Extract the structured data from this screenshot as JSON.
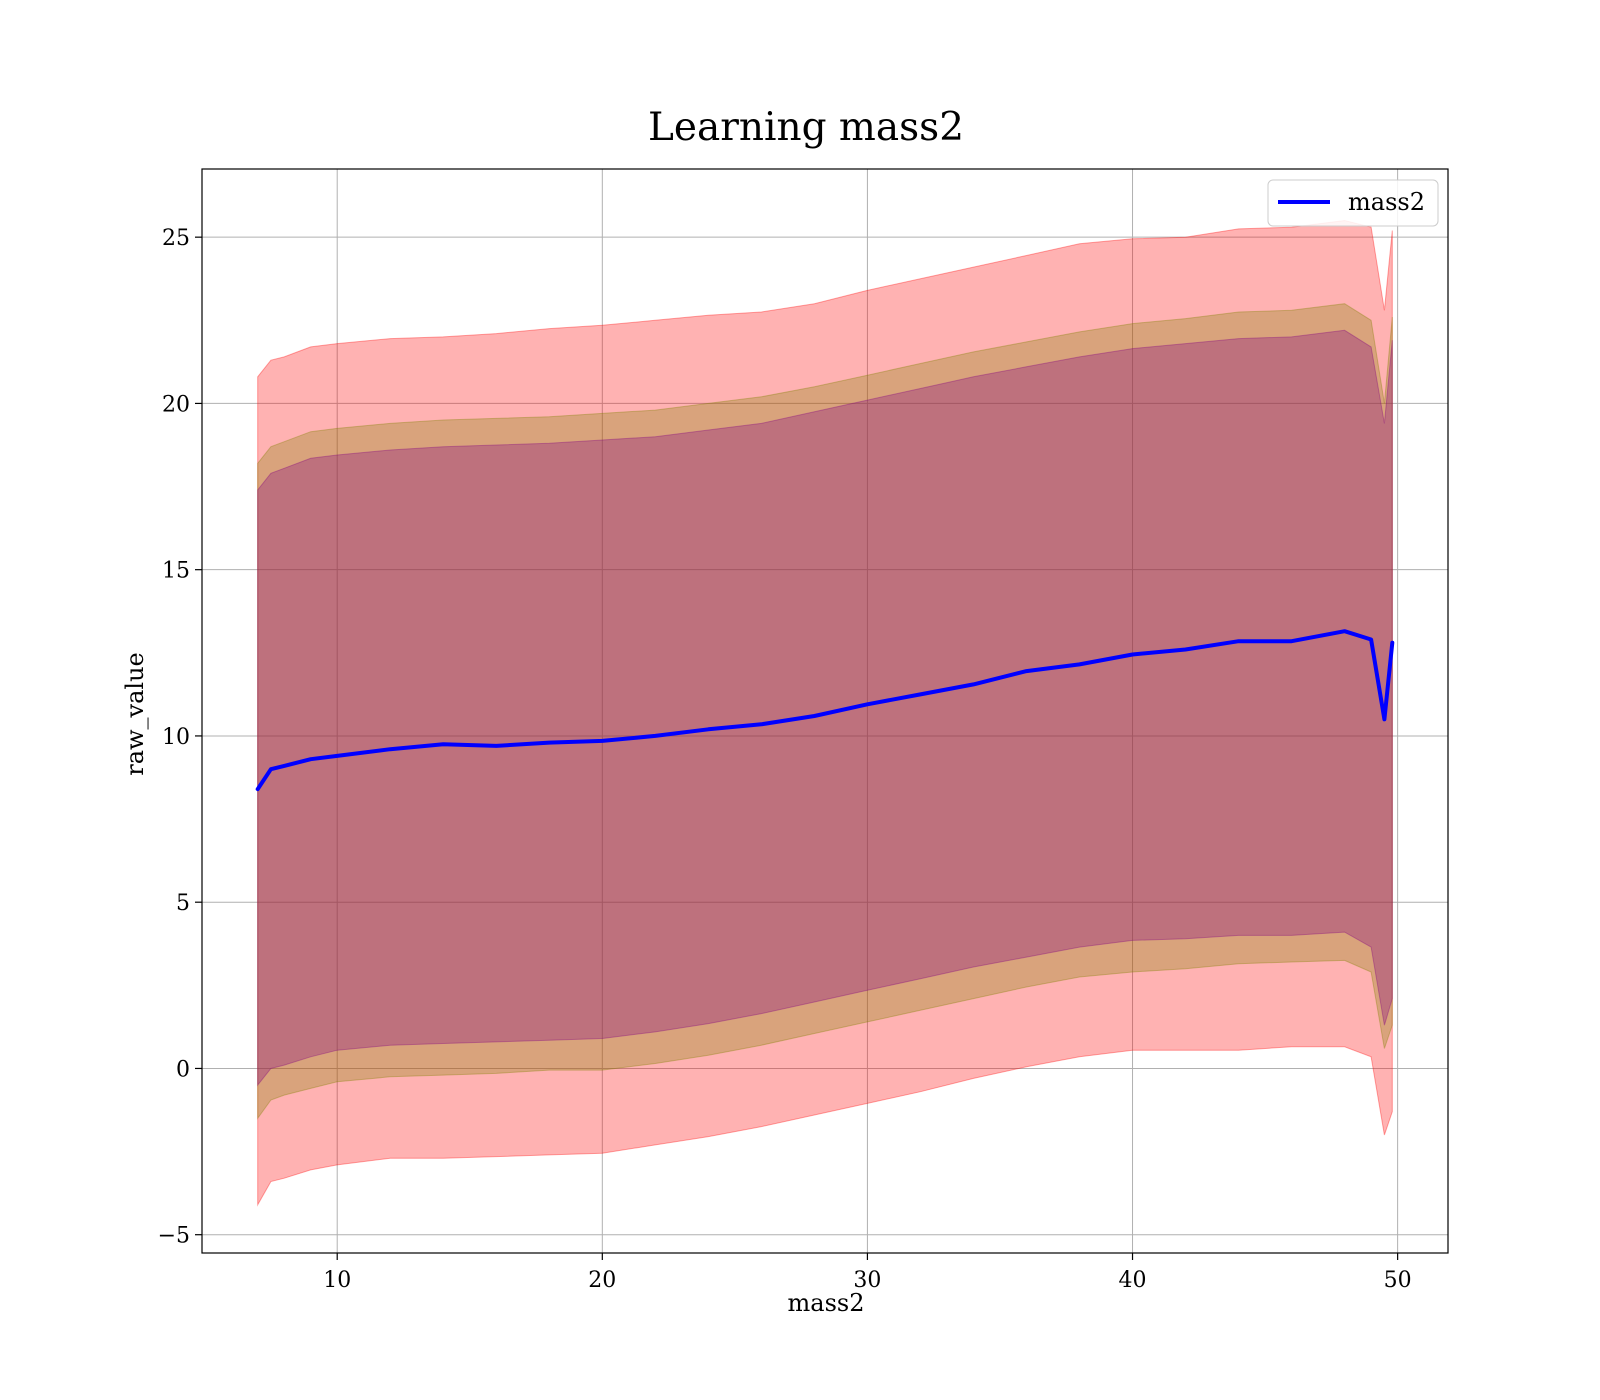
{
  "chart_data": {
    "type": "line",
    "title": "Learning mass2",
    "xlabel": "mass2",
    "ylabel": "raw_value",
    "xlim": [
      4.9,
      51.9
    ],
    "ylim": [
      -5.55,
      27.05
    ],
    "xticks": [
      10,
      20,
      30,
      40,
      50
    ],
    "xtick_labels": [
      "10",
      "20",
      "30",
      "40",
      "50"
    ],
    "yticks": [
      -5,
      0,
      5,
      10,
      15,
      20,
      25
    ],
    "ytick_labels": [
      "−5",
      "0",
      "5",
      "10",
      "15",
      "20",
      "25"
    ],
    "grid": true,
    "legend": {
      "position": "top-right",
      "entries": [
        "mass2"
      ]
    },
    "colors": {
      "line": "#0000ff",
      "outer_band": "#ff0000",
      "middle_band": "#808000",
      "inner_band": "#800080",
      "grid": "#b0b0b0"
    },
    "x": [
      7.0,
      7.5,
      8.0,
      9.0,
      10.0,
      12.0,
      14.0,
      16.0,
      18.0,
      20.0,
      22.0,
      24.0,
      26.0,
      28.0,
      30.0,
      32.0,
      34.0,
      36.0,
      38.0,
      40.0,
      42.0,
      44.0,
      46.0,
      48.0,
      49.0,
      49.5,
      49.8
    ],
    "series": [
      {
        "name": "mass2",
        "values": [
          8.4,
          9.0,
          9.1,
          9.3,
          9.4,
          9.6,
          9.75,
          9.7,
          9.8,
          9.85,
          10.0,
          10.2,
          10.35,
          10.6,
          10.95,
          11.25,
          11.55,
          11.95,
          12.15,
          12.45,
          12.6,
          12.85,
          12.85,
          13.15,
          12.9,
          10.5,
          12.8
        ]
      },
      {
        "values_lower": [
          -4.1,
          -3.4,
          -3.3,
          -3.05,
          -2.9,
          -2.7,
          -2.7,
          -2.65,
          -2.6,
          -2.55,
          -2.3,
          -2.05,
          -1.75,
          -1.4,
          -1.05,
          -0.7,
          -0.3,
          0.05,
          0.35,
          0.55,
          0.55,
          0.55,
          0.65,
          0.65,
          0.35,
          -2.0,
          -1.3
        ],
        "values_upper": [
          20.8,
          21.3,
          21.4,
          21.7,
          21.8,
          21.95,
          22.0,
          22.1,
          22.25,
          22.35,
          22.5,
          22.65,
          22.75,
          23.0,
          23.4,
          23.75,
          24.1,
          24.45,
          24.8,
          24.95,
          25.0,
          25.25,
          25.3,
          25.5,
          25.3,
          22.8,
          25.2
        ]
      },
      {
        "values_lower": [
          -1.5,
          -0.95,
          -0.8,
          -0.6,
          -0.4,
          -0.25,
          -0.2,
          -0.15,
          -0.05,
          -0.05,
          0.15,
          0.4,
          0.7,
          1.05,
          1.4,
          1.75,
          2.1,
          2.45,
          2.75,
          2.9,
          3.0,
          3.15,
          3.2,
          3.25,
          2.9,
          0.6,
          1.3
        ],
        "values_upper": [
          18.2,
          18.7,
          18.85,
          19.15,
          19.25,
          19.4,
          19.5,
          19.55,
          19.6,
          19.7,
          19.8,
          20.0,
          20.2,
          20.5,
          20.85,
          21.2,
          21.55,
          21.85,
          22.15,
          22.4,
          22.55,
          22.75,
          22.8,
          23.0,
          22.5,
          20.0,
          22.6
        ]
      },
      {
        "values_lower": [
          -0.5,
          0.0,
          0.1,
          0.35,
          0.55,
          0.7,
          0.75,
          0.8,
          0.85,
          0.9,
          1.1,
          1.35,
          1.65,
          2.0,
          2.35,
          2.7,
          3.05,
          3.35,
          3.65,
          3.85,
          3.9,
          4.0,
          4.0,
          4.1,
          3.65,
          1.3,
          2.1
        ],
        "values_upper": [
          17.4,
          17.9,
          18.05,
          18.35,
          18.45,
          18.6,
          18.7,
          18.75,
          18.8,
          18.9,
          19.0,
          19.2,
          19.4,
          19.75,
          20.1,
          20.45,
          20.8,
          21.1,
          21.4,
          21.65,
          21.8,
          21.95,
          22.0,
          22.2,
          21.7,
          19.4,
          21.9
        ]
      }
    ]
  }
}
